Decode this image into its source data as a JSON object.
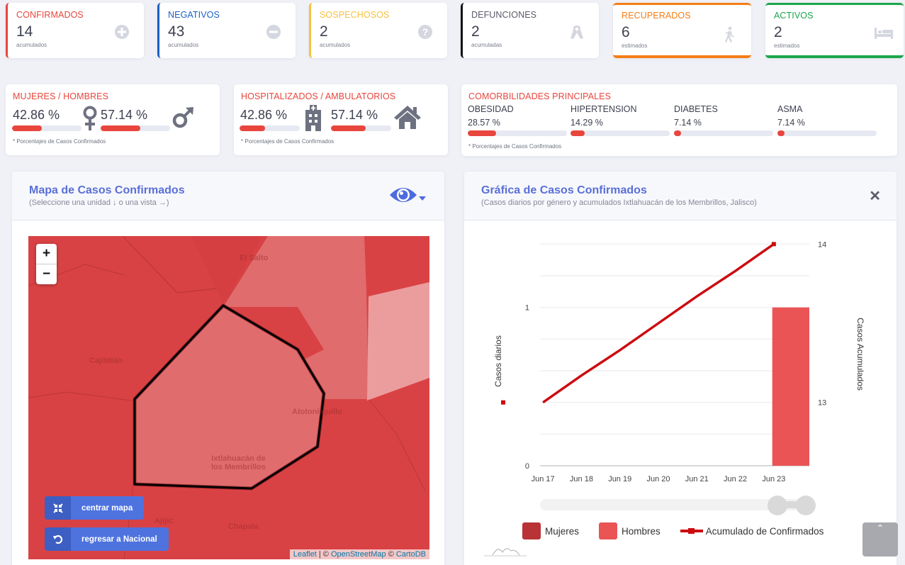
{
  "stats": [
    {
      "title": "CONFIRMADOS",
      "value": "14",
      "sub": "acumulados",
      "color": "#e8463d",
      "icon": "plus-circle-icon"
    },
    {
      "title": "NEGATIVOS",
      "value": "43",
      "sub": "acumulados",
      "color": "#1b5fc6",
      "icon": "minus-circle-icon"
    },
    {
      "title": "SOSPECHOSOS",
      "value": "2",
      "sub": "acumulados",
      "color": "#f6c23e",
      "icon": "question-circle-icon"
    },
    {
      "title": "DEFUNCIONES",
      "value": "2",
      "sub": "acumuladas",
      "color": "#111111",
      "icon": "ribbon-icon"
    },
    {
      "title": "RECUPERADOS",
      "value": "6",
      "sub": "estimados",
      "color": "#f47e17",
      "icon": "walking-icon"
    },
    {
      "title": "ACTIVOS",
      "value": "2",
      "sub": "estimados",
      "color": "#1ca64a",
      "icon": "bed-icon"
    }
  ],
  "gender": {
    "title": "MUJERES / HOMBRES",
    "women_pct": "42.86 %",
    "women_value": 42.86,
    "men_pct": "57.14 %",
    "men_value": 57.14,
    "footnote": "* Porcentajes  de Casos Confirmados"
  },
  "hospital": {
    "title": "HOSPITALIZADOS / AMBULATORIOS",
    "hosp_pct": "42.86 %",
    "hosp_value": 42.86,
    "amb_pct": "57.14 %",
    "amb_value": 57.14,
    "footnote": "* Porcentajes  de Casos Confirmados"
  },
  "comorbidities": {
    "title": "COMORBILIDADES PRINCIPALES",
    "items": [
      {
        "label": "OBESIDAD",
        "pct": "28.57 %",
        "value": 28.57
      },
      {
        "label": "HIPERTENSION",
        "pct": "14.29 %",
        "value": 14.29
      },
      {
        "label": "DIABETES",
        "pct": "7.14 %",
        "value": 7.14
      },
      {
        "label": "ASMA",
        "pct": "7.14 %",
        "value": 7.14
      }
    ],
    "footnote": "* Porcentajes  de Casos Confirmados"
  },
  "map_panel": {
    "title": "Mapa de Casos Confirmados",
    "subtitle": "(Seleccione una unidad ↓ o una vista →)",
    "zoom_in": "+",
    "zoom_out": "−",
    "center_button": "centrar mapa",
    "national_button": "regresar a Nacional",
    "attribution": {
      "leaflet": "Leaflet",
      "sep": " | © ",
      "osm": "OpenStreetMap",
      "sep2": " © ",
      "carto": "CartoDB"
    },
    "places": [
      "El Salto",
      "Cajititlán",
      "Atotonilquillo",
      "Ixtlahuacán de",
      "los Membrillos",
      "Ajijic",
      "Chapala"
    ]
  },
  "chart_panel": {
    "title": "Gráfica de Casos Confirmados",
    "subtitle": "(Casos diarios por género y acumulados Ixtlahuacán de los Membrillos, Jalisco)",
    "close": "✕"
  },
  "chart_data": {
    "type": "bar",
    "title": "Gráfica de Casos Confirmados",
    "categories": [
      "Jun 17",
      "Jun 18",
      "Jun 19",
      "Jun 20",
      "Jun 21",
      "Jun 22",
      "Jun 23"
    ],
    "series": [
      {
        "name": "Mujeres",
        "type": "bar",
        "axis": "left",
        "color": "#b83236",
        "values": [
          0,
          0,
          0,
          0,
          0,
          0,
          0
        ]
      },
      {
        "name": "Hombres",
        "type": "bar",
        "axis": "left",
        "color": "#ea5455",
        "values": [
          0,
          0,
          0,
          0,
          0,
          0,
          1
        ]
      },
      {
        "name": "Acumulado de Confirmados",
        "type": "line",
        "axis": "right",
        "color": "#cc0c10",
        "values": [
          13,
          13.17,
          13.33,
          13.5,
          13.67,
          13.83,
          14
        ]
      }
    ],
    "ylabel": "Casos diarios",
    "ylabel_right": "Casos Acumulados",
    "yticks_left": [
      0,
      1
    ],
    "yticks_right": [
      13,
      14
    ],
    "ylim_left": [
      0,
      1.5
    ],
    "ylim_right": [
      12.6,
      14.1
    ],
    "grid": true,
    "legend": "bottom"
  },
  "scroll_top": "ˆ"
}
